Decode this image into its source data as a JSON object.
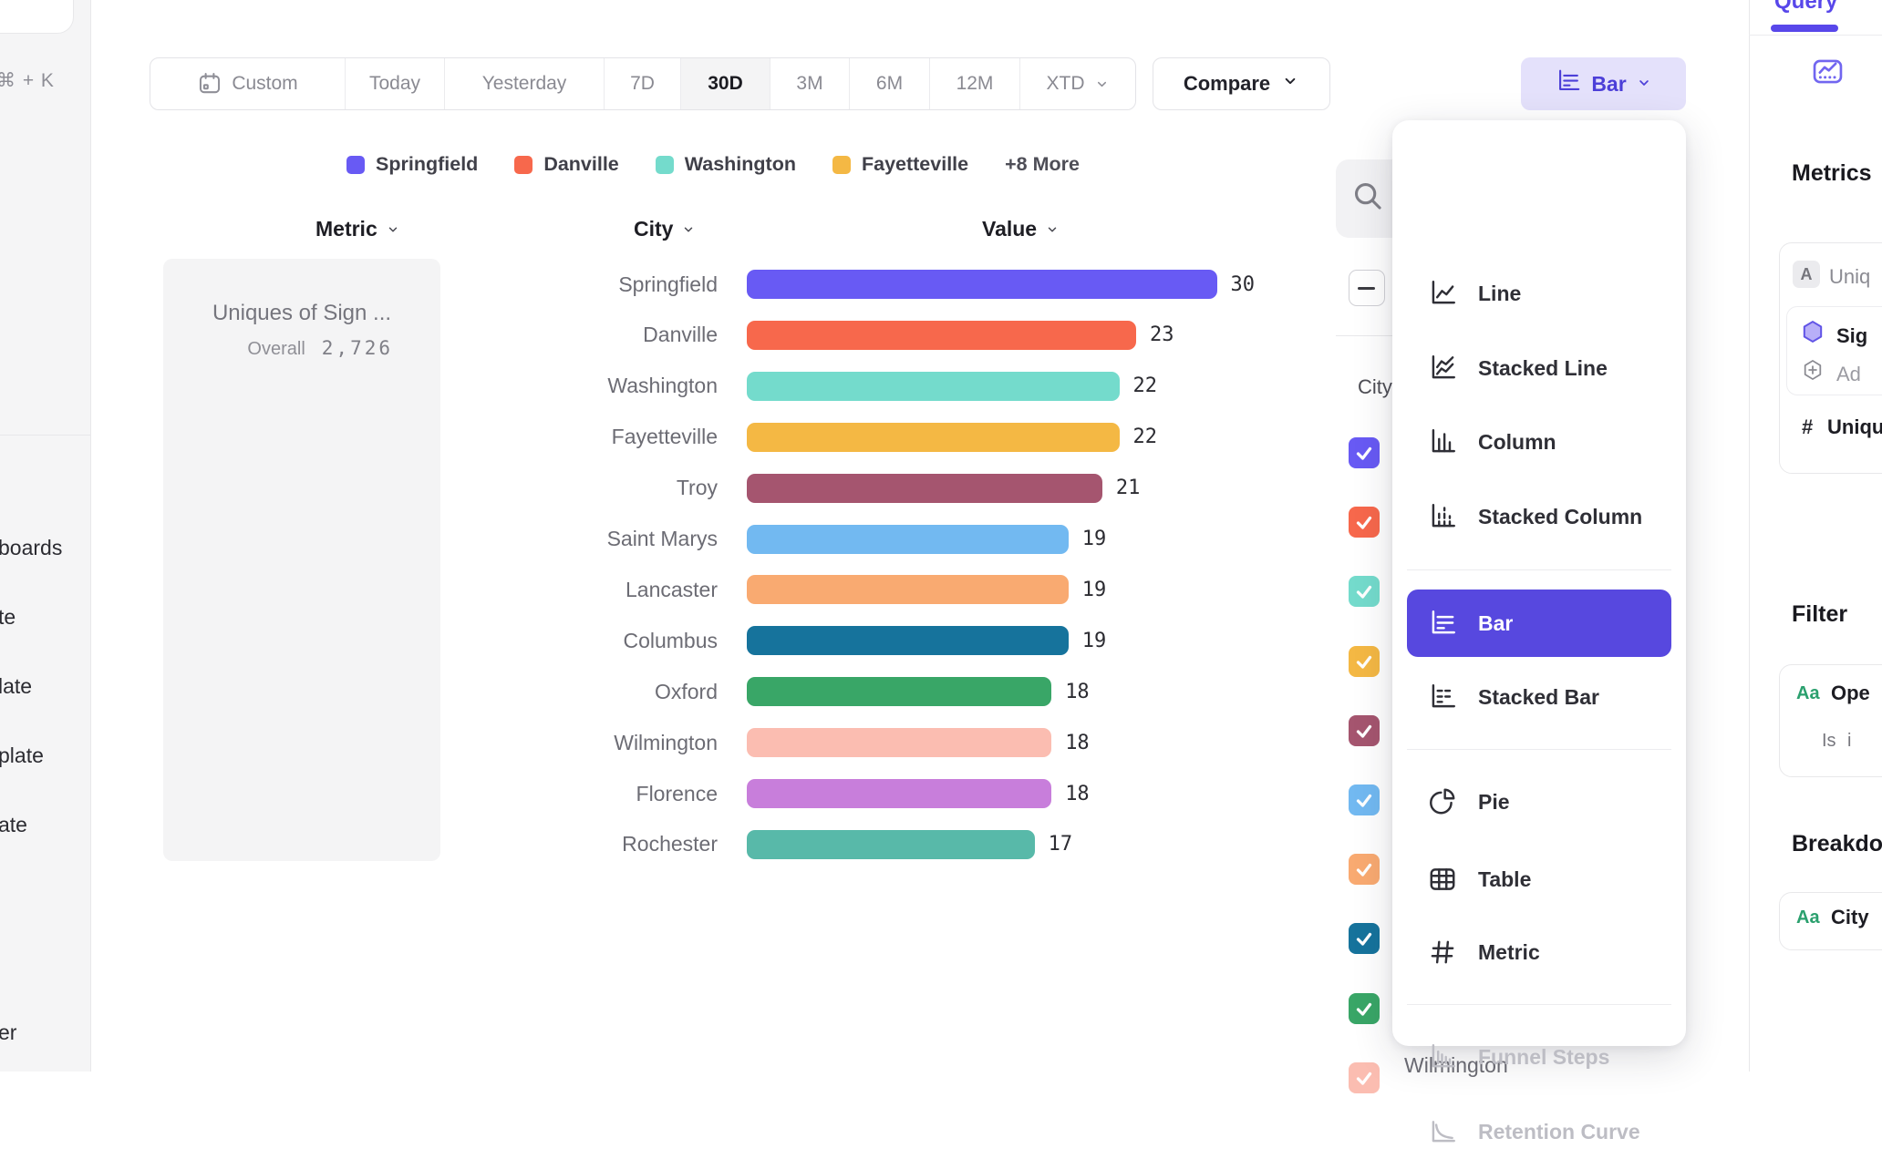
{
  "colors": {
    "accent": "#5847df",
    "accent_light_bg": "#e4e1fb",
    "selected_menu_bg": "#5748df",
    "sidebar_bg": "#f5f5f6",
    "card_bg": "#f4f4f5"
  },
  "sidebar": {
    "shortcut": "⌘ + K",
    "items": [
      "boards",
      "te",
      "late",
      "plate",
      "ate",
      "er"
    ]
  },
  "toolbar": {
    "date_ranges": [
      {
        "label": "Custom",
        "icon": "calendar"
      },
      {
        "label": "Today"
      },
      {
        "label": "Yesterday"
      },
      {
        "label": "7D"
      },
      {
        "label": "30D",
        "selected": true
      },
      {
        "label": "3M"
      },
      {
        "label": "6M"
      },
      {
        "label": "12M"
      },
      {
        "label": "XTD",
        "chevron": true
      }
    ],
    "compare_label": "Compare",
    "chart_type_label": "Bar"
  },
  "legend": {
    "items": [
      {
        "label": "Springfield",
        "color": "#685af4"
      },
      {
        "label": "Danville",
        "color": "#f7684c"
      },
      {
        "label": "Washington",
        "color": "#74dbcc"
      },
      {
        "label": "Fayetteville",
        "color": "#f4b844"
      }
    ],
    "more_label": "+8 More"
  },
  "table": {
    "headers": [
      "Metric",
      "City",
      "Value"
    ]
  },
  "metric_card": {
    "title": "Uniques of Sign ...",
    "overall_label": "Overall",
    "overall_value": "2,726"
  },
  "chart_data": {
    "type": "bar",
    "orientation": "horizontal",
    "title": "Uniques of Sign ...",
    "categories": [
      "Springfield",
      "Danville",
      "Washington",
      "Fayetteville",
      "Troy",
      "Saint Marys",
      "Lancaster",
      "Columbus",
      "Oxford",
      "Wilmington",
      "Florence",
      "Rochester"
    ],
    "values": [
      30,
      23,
      22,
      22,
      21,
      19,
      19,
      19,
      18,
      18,
      18,
      17
    ],
    "colors": [
      "#685af4",
      "#f7684c",
      "#74dbcc",
      "#f4b844",
      "#a5556f",
      "#72b9f1",
      "#f9aa71",
      "#16739c",
      "#39a667",
      "#fbbdb1",
      "#c87edb",
      "#58b9a9"
    ],
    "xlim": [
      0,
      30
    ],
    "value_labels": true,
    "grid": false
  },
  "city_panel": {
    "header": "City",
    "checkbox_colors": [
      "#685af4",
      "#f7684c",
      "#74dbcc",
      "#f4b844",
      "#a5556f",
      "#72b9f1",
      "#f9aa71",
      "#16739c",
      "#39a667",
      "#fbbdb1"
    ],
    "partial_label": "Wilmington"
  },
  "chart_menu": {
    "items": [
      {
        "label": "Line",
        "icon": "line"
      },
      {
        "label": "Stacked Line",
        "icon": "stackedline"
      },
      {
        "label": "Column",
        "icon": "column"
      },
      {
        "label": "Stacked Column",
        "icon": "stackedcolumn"
      },
      {
        "label": "Bar",
        "icon": "bar",
        "selected": true
      },
      {
        "label": "Stacked Bar",
        "icon": "stackedbar"
      },
      {
        "label": "Pie",
        "icon": "pie"
      },
      {
        "label": "Table",
        "icon": "table"
      },
      {
        "label": "Metric",
        "icon": "hash"
      },
      {
        "label": "Funnel Steps",
        "icon": "funnel",
        "disabled": true
      },
      {
        "label": "Retention Curve",
        "icon": "retention",
        "disabled": true
      }
    ]
  },
  "query_panel": {
    "tab": "Query",
    "metrics_heading": "Metrics",
    "metric_row_badge": "A",
    "metric_row_label": "Uniq",
    "event_label": "Sig",
    "add_label": "Ad",
    "formula_prefix": "#",
    "formula_label": "Uniqu",
    "filter_heading": "Filter",
    "filter_type_badge": "Aa",
    "filter_label": "Ope",
    "filter_operator": "Is",
    "filter_value": "i",
    "breakdown_heading": "Breakdown",
    "breakdown_type_badge": "Aa",
    "breakdown_label": "City"
  }
}
